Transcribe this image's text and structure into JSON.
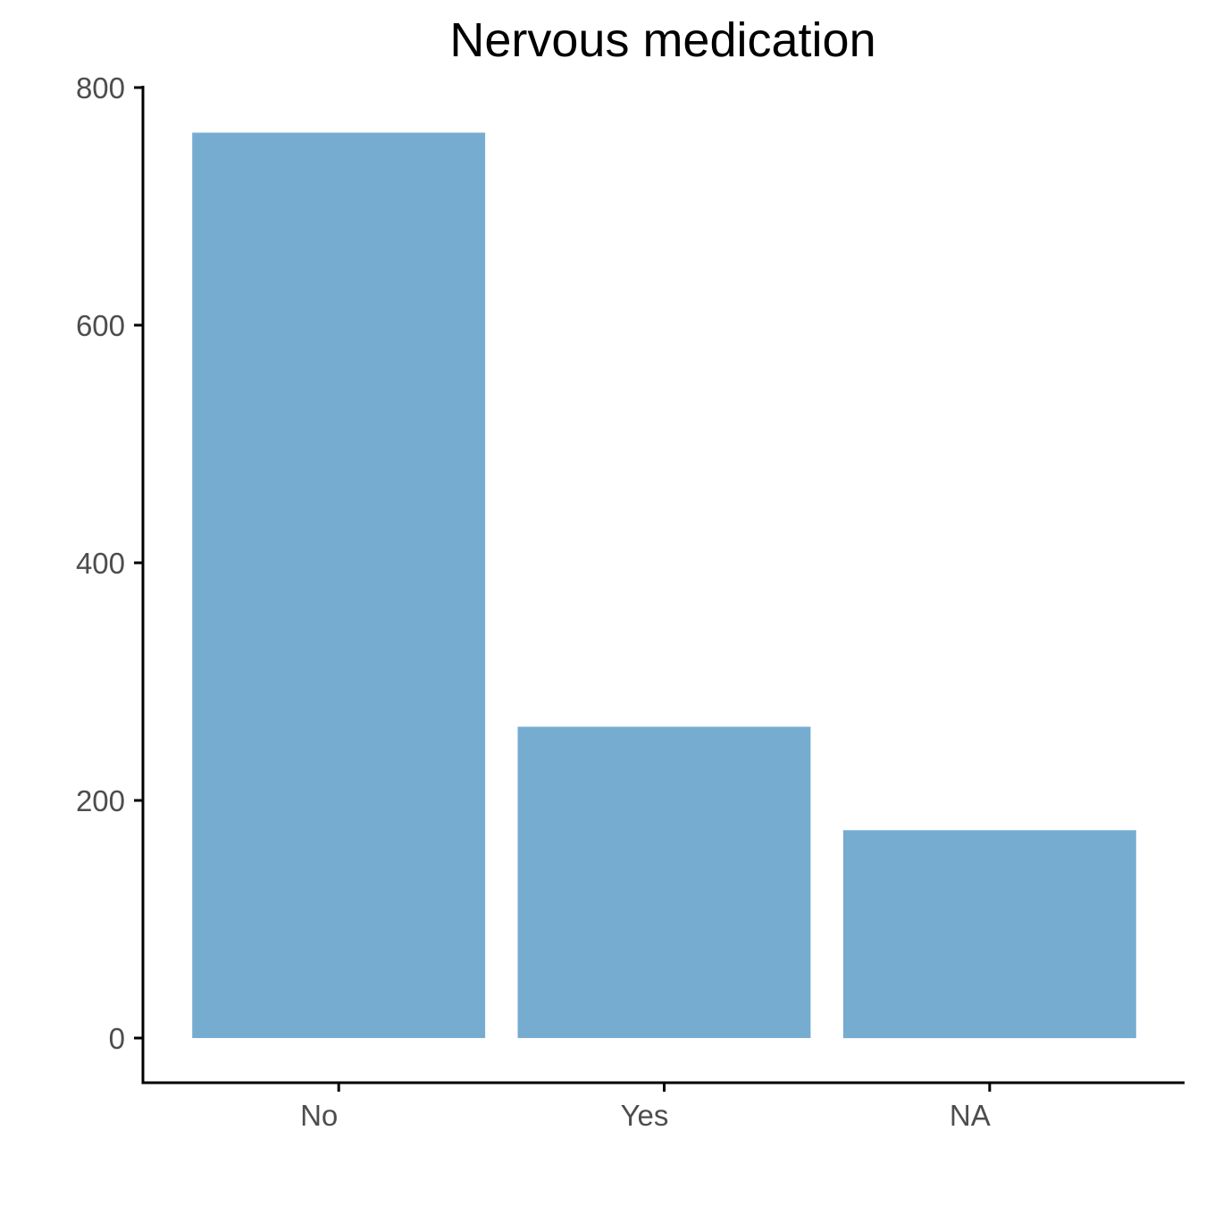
{
  "chart_data": {
    "type": "bar",
    "title": "Nervous medication",
    "xlabel": "",
    "ylabel": "",
    "categories": [
      "No",
      "Yes",
      "NA"
    ],
    "values": [
      762,
      262,
      175
    ],
    "ylim": [
      0,
      800
    ],
    "yticks": [
      0,
      200,
      400,
      600,
      800
    ],
    "bar_color": "#77ACD1",
    "axis_color": "#000000",
    "tick_label_color": "#4D4D4D",
    "grid": false,
    "legend": "none"
  }
}
